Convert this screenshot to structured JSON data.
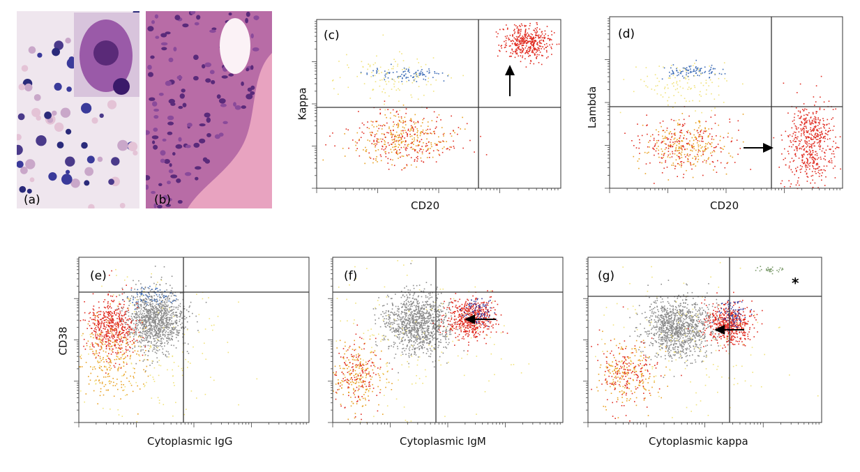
{
  "photo_panels": [
    {
      "label": "(a)"
    },
    {
      "label": "(b)"
    }
  ],
  "chart_data": [
    {
      "type": "scatter",
      "panel": "(c)",
      "xlabel": "CD20",
      "ylabel": "Kappa",
      "log_axes": true,
      "quadrant_gates": true,
      "annotation": "arrow-up",
      "grid": false,
      "clusters": [
        {
          "color": "#e02a1f",
          "x": 0.86,
          "y": 0.87,
          "spread": [
            0.05,
            0.05
          ],
          "n": 420
        },
        {
          "color": "#e8a020",
          "x": 0.35,
          "y": 0.3,
          "spread": [
            0.1,
            0.07
          ],
          "n": 260
        },
        {
          "color": "#e02a1f",
          "x": 0.35,
          "y": 0.3,
          "spread": [
            0.12,
            0.08
          ],
          "n": 220
        },
        {
          "color": "#3a6ab5",
          "x": 0.37,
          "y": 0.68,
          "spread": [
            0.07,
            0.02
          ],
          "n": 90
        },
        {
          "color": "#f1e27a",
          "x": 0.32,
          "y": 0.65,
          "spread": [
            0.11,
            0.07
          ],
          "n": 110
        }
      ]
    },
    {
      "type": "scatter",
      "panel": "(d)",
      "xlabel": "CD20",
      "ylabel": "Lambda",
      "log_axes": true,
      "quadrant_gates": true,
      "annotation": "arrow-right",
      "grid": false,
      "clusters": [
        {
          "color": "#e02a1f",
          "x": 0.86,
          "y": 0.27,
          "spread": [
            0.05,
            0.12
          ],
          "n": 520
        },
        {
          "color": "#e8a020",
          "x": 0.32,
          "y": 0.25,
          "spread": [
            0.09,
            0.07
          ],
          "n": 230
        },
        {
          "color": "#e02a1f",
          "x": 0.32,
          "y": 0.25,
          "spread": [
            0.11,
            0.08
          ],
          "n": 200
        },
        {
          "color": "#3a6ab5",
          "x": 0.35,
          "y": 0.68,
          "spread": [
            0.06,
            0.02
          ],
          "n": 90
        },
        {
          "color": "#f1e27a",
          "x": 0.3,
          "y": 0.6,
          "spread": [
            0.1,
            0.07
          ],
          "n": 110
        }
      ]
    },
    {
      "type": "scatter",
      "panel": "(e)",
      "xlabel": "Cytoplasmic IgG",
      "ylabel": "CD38",
      "log_axes": true,
      "quadrant_gates": true,
      "annotation": "",
      "grid": false,
      "clusters": [
        {
          "color": "#8a8a8a",
          "x": 0.33,
          "y": 0.62,
          "spread": [
            0.06,
            0.09
          ],
          "n": 1100
        },
        {
          "color": "#e02a1f",
          "x": 0.14,
          "y": 0.58,
          "spread": [
            0.05,
            0.09
          ],
          "n": 520
        },
        {
          "color": "#e8a020",
          "x": 0.14,
          "y": 0.38,
          "spread": [
            0.07,
            0.12
          ],
          "n": 220
        },
        {
          "color": "#3a6ab5",
          "x": 0.3,
          "y": 0.76,
          "spread": [
            0.05,
            0.03
          ],
          "n": 70
        },
        {
          "color": "#f1e27a",
          "x": 0.3,
          "y": 0.45,
          "spread": [
            0.18,
            0.22
          ],
          "n": 180
        }
      ]
    },
    {
      "type": "scatter",
      "panel": "(f)",
      "xlabel": "Cytoplasmic IgM",
      "ylabel": "",
      "log_axes": true,
      "quadrant_gates": true,
      "annotation": "arrow-left",
      "grid": false,
      "clusters": [
        {
          "color": "#8a8a8a",
          "x": 0.37,
          "y": 0.6,
          "spread": [
            0.07,
            0.09
          ],
          "n": 1100
        },
        {
          "color": "#e02a1f",
          "x": 0.6,
          "y": 0.63,
          "spread": [
            0.05,
            0.06
          ],
          "n": 520
        },
        {
          "color": "#3a3a9a",
          "x": 0.63,
          "y": 0.68,
          "spread": [
            0.03,
            0.04
          ],
          "n": 90
        },
        {
          "color": "#e8a020",
          "x": 0.1,
          "y": 0.28,
          "spread": [
            0.06,
            0.1
          ],
          "n": 200
        },
        {
          "color": "#e02a1f",
          "x": 0.1,
          "y": 0.3,
          "spread": [
            0.06,
            0.1
          ],
          "n": 140
        },
        {
          "color": "#f1e27a",
          "x": 0.35,
          "y": 0.5,
          "spread": [
            0.22,
            0.25
          ],
          "n": 160
        }
      ]
    },
    {
      "type": "scatter",
      "panel": "(g)",
      "xlabel": "Cytoplasmic kappa",
      "ylabel": "",
      "log_axes": true,
      "quadrant_gates": true,
      "annotation": "arrow-left",
      "marker": "*",
      "grid": false,
      "clusters": [
        {
          "color": "#8a8a8a",
          "x": 0.38,
          "y": 0.58,
          "spread": [
            0.07,
            0.09
          ],
          "n": 1100
        },
        {
          "color": "#e02a1f",
          "x": 0.6,
          "y": 0.6,
          "spread": [
            0.05,
            0.06
          ],
          "n": 520
        },
        {
          "color": "#3a3a9a",
          "x": 0.62,
          "y": 0.66,
          "spread": [
            0.03,
            0.04
          ],
          "n": 90
        },
        {
          "color": "#e8a020",
          "x": 0.16,
          "y": 0.3,
          "spread": [
            0.07,
            0.1
          ],
          "n": 200
        },
        {
          "color": "#e02a1f",
          "x": 0.17,
          "y": 0.3,
          "spread": [
            0.07,
            0.1
          ],
          "n": 160
        },
        {
          "color": "#7a9a6a",
          "x": 0.78,
          "y": 0.93,
          "spread": [
            0.03,
            0.01
          ],
          "n": 30
        },
        {
          "color": "#f1e27a",
          "x": 0.4,
          "y": 0.5,
          "spread": [
            0.24,
            0.25
          ],
          "n": 150
        }
      ]
    }
  ]
}
